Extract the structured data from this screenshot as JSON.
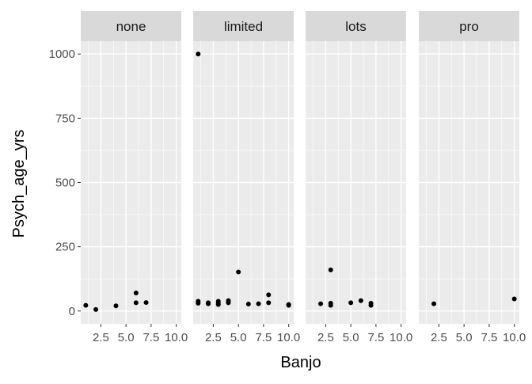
{
  "chart_data": {
    "type": "scatter",
    "facet_variable": "",
    "xlabel": "Banjo",
    "ylabel": "Psych_age_yrs",
    "xlim": [
      0.5,
      10.5
    ],
    "ylim": [
      -50,
      1050
    ],
    "x_ticks": [
      2.5,
      5.0,
      7.5,
      10.0
    ],
    "x_tick_labels": [
      "2.5",
      "5.0",
      "7.5",
      "10.0"
    ],
    "y_ticks": [
      0,
      250,
      500,
      750,
      1000
    ],
    "y_tick_labels": [
      "0",
      "250",
      "500",
      "750",
      "1000"
    ],
    "grid": true,
    "panels": [
      {
        "label": "none",
        "points": [
          [
            1,
            22
          ],
          [
            2,
            6
          ],
          [
            4,
            20
          ],
          [
            6,
            70
          ],
          [
            6,
            32
          ],
          [
            7,
            33
          ]
        ]
      },
      {
        "label": "limited",
        "points": [
          [
            1,
            1000
          ],
          [
            1,
            38
          ],
          [
            1,
            30
          ],
          [
            2,
            32
          ],
          [
            2,
            28
          ],
          [
            3,
            38
          ],
          [
            3,
            30
          ],
          [
            3,
            25
          ],
          [
            4,
            40
          ],
          [
            4,
            32
          ],
          [
            5,
            152
          ],
          [
            6,
            27
          ],
          [
            7,
            28
          ],
          [
            8,
            63
          ],
          [
            8,
            32
          ],
          [
            10,
            25
          ],
          [
            10,
            22
          ]
        ]
      },
      {
        "label": "lots",
        "points": [
          [
            2,
            28
          ],
          [
            3,
            160
          ],
          [
            3,
            30
          ],
          [
            3,
            22
          ],
          [
            5,
            32
          ],
          [
            6,
            40
          ],
          [
            7,
            30
          ],
          [
            7,
            22
          ]
        ]
      },
      {
        "label": "pro",
        "points": [
          [
            2,
            28
          ],
          [
            10,
            47
          ]
        ]
      }
    ]
  }
}
